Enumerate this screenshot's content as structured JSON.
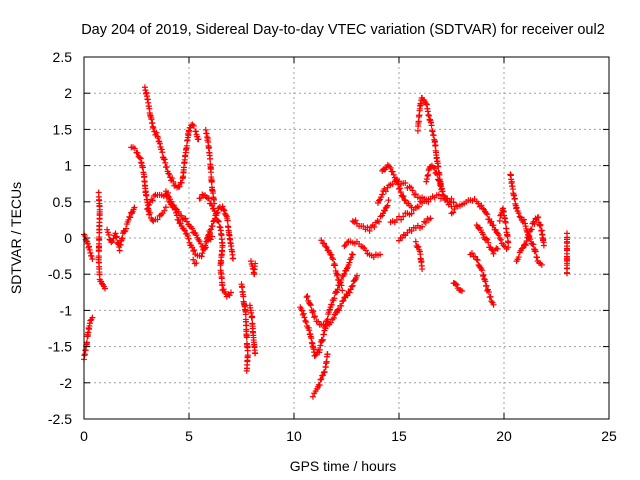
{
  "chart_data": {
    "type": "scatter",
    "title": "Day 204 of 2019, Sidereal Day-to-day VTEC variation (SDTVAR) for receiver oul2",
    "xlabel": "GPS time / hours",
    "ylabel": "SDTVAR / TECUs",
    "xlim": [
      0,
      25
    ],
    "ylim": [
      -2.5,
      2.5
    ],
    "x_ticks": [
      0,
      5,
      10,
      15,
      20,
      25
    ],
    "x_tick_labels": [
      "0",
      "5",
      "10",
      "15",
      "20",
      "25"
    ],
    "y_ticks": [
      -2.5,
      -2,
      -1.5,
      -1,
      -0.5,
      0,
      0.5,
      1,
      1.5,
      2,
      2.5
    ],
    "y_tick_labels": [
      "-2.5",
      "-2",
      "-1.5",
      "-1",
      "-0.5",
      "0",
      "0.5",
      "1",
      "1.5",
      "2",
      "2.5"
    ],
    "grid": true,
    "marker": "+",
    "color": "#ff0000",
    "series": [
      {
        "name": "SDTVAR",
        "traces": [
          [
            [
              0.0,
              0.05
            ],
            [
              0.15,
              -0.05
            ],
            [
              0.3,
              -0.2
            ],
            [
              0.4,
              -0.3
            ]
          ],
          [
            [
              0.0,
              -1.65
            ],
            [
              0.1,
              -1.5
            ],
            [
              0.2,
              -1.3
            ],
            [
              0.3,
              -1.15
            ],
            [
              0.4,
              -1.08
            ]
          ],
          [
            [
              0.7,
              0.6
            ],
            [
              0.75,
              0.4
            ],
            [
              0.7,
              -0.3
            ],
            [
              0.75,
              -0.55
            ],
            [
              0.85,
              -0.65
            ],
            [
              1.0,
              -0.72
            ]
          ],
          [
            [
              1.1,
              0.1
            ],
            [
              1.3,
              -0.05
            ],
            [
              1.5,
              0.05
            ],
            [
              1.7,
              -0.15
            ],
            [
              1.85,
              0.05
            ],
            [
              2.0,
              0.15
            ],
            [
              2.2,
              0.3
            ],
            [
              2.4,
              0.45
            ]
          ],
          [
            [
              2.25,
              1.25
            ],
            [
              2.5,
              1.2
            ],
            [
              2.7,
              1.1
            ],
            [
              2.85,
              0.9
            ],
            [
              2.95,
              0.6
            ],
            [
              3.1,
              0.35
            ],
            [
              3.3,
              0.25
            ],
            [
              3.6,
              0.3
            ],
            [
              3.9,
              0.4
            ]
          ],
          [
            [
              2.9,
              2.08
            ],
            [
              3.0,
              1.95
            ],
            [
              3.15,
              1.7
            ],
            [
              3.3,
              1.5
            ],
            [
              3.5,
              1.4
            ],
            [
              3.7,
              1.2
            ],
            [
              3.9,
              1.0
            ],
            [
              4.1,
              0.85
            ],
            [
              4.3,
              0.75
            ],
            [
              4.5,
              0.7
            ],
            [
              4.7,
              0.8
            ],
            [
              4.8,
              1.1
            ],
            [
              4.9,
              1.3
            ],
            [
              5.0,
              1.5
            ],
            [
              5.1,
              1.58
            ],
            [
              5.3,
              1.5
            ],
            [
              5.45,
              1.35
            ]
          ],
          [
            [
              3.0,
              0.4
            ],
            [
              3.2,
              0.5
            ],
            [
              3.4,
              0.58
            ],
            [
              3.6,
              0.62
            ],
            [
              3.8,
              0.6
            ],
            [
              4.0,
              0.55
            ],
            [
              4.2,
              0.45
            ],
            [
              4.5,
              0.35
            ],
            [
              4.7,
              0.28
            ],
            [
              4.9,
              0.22
            ],
            [
              5.1,
              0.15
            ],
            [
              5.3,
              0.05
            ],
            [
              5.5,
              -0.05
            ],
            [
              5.7,
              -0.12
            ],
            [
              5.9,
              -0.05
            ],
            [
              6.1,
              0.0
            ]
          ],
          [
            [
              3.9,
              0.65
            ],
            [
              4.1,
              0.55
            ],
            [
              4.3,
              0.4
            ],
            [
              4.5,
              0.25
            ],
            [
              4.7,
              0.15
            ],
            [
              4.9,
              0.05
            ],
            [
              5.1,
              -0.1
            ],
            [
              5.3,
              -0.2
            ],
            [
              5.6,
              -0.25
            ],
            [
              5.8,
              -0.1
            ],
            [
              6.0,
              0.1
            ],
            [
              6.2,
              0.25
            ],
            [
              6.4,
              0.4
            ],
            [
              6.6,
              0.45
            ],
            [
              6.8,
              0.3
            ],
            [
              6.9,
              0.1
            ],
            [
              7.0,
              -0.1
            ],
            [
              7.1,
              -0.3
            ]
          ],
          [
            [
              5.5,
              0.55
            ],
            [
              5.7,
              0.6
            ],
            [
              5.9,
              0.55
            ],
            [
              6.1,
              0.45
            ],
            [
              6.3,
              0.3
            ],
            [
              6.5,
              0.15
            ],
            [
              6.6,
              -0.1
            ],
            [
              6.5,
              -0.4
            ],
            [
              6.6,
              -0.7
            ],
            [
              6.8,
              -0.8
            ],
            [
              7.0,
              -0.75
            ]
          ],
          [
            [
              5.8,
              1.5
            ],
            [
              5.9,
              1.35
            ],
            [
              6.0,
              1.1
            ],
            [
              6.05,
              0.9
            ],
            [
              6.1,
              0.7
            ],
            [
              6.2,
              0.5
            ]
          ],
          [
            [
              5.2,
              -0.3
            ],
            [
              5.35,
              -0.35
            ]
          ],
          [
            [
              7.5,
              -0.65
            ],
            [
              7.6,
              -0.85
            ],
            [
              7.7,
              -1.05
            ],
            [
              7.75,
              -1.4
            ],
            [
              7.8,
              -1.6
            ],
            [
              7.75,
              -1.85
            ]
          ],
          [
            [
              7.9,
              -0.95
            ],
            [
              8.0,
              -1.1
            ],
            [
              8.05,
              -1.3
            ],
            [
              8.1,
              -1.45
            ],
            [
              8.15,
              -1.6
            ]
          ],
          [
            [
              7.95,
              -0.3
            ],
            [
              8.05,
              -0.4
            ],
            [
              8.1,
              -0.5
            ],
            [
              8.15,
              -0.38
            ]
          ],
          [
            [
              10.3,
              -0.95
            ],
            [
              10.5,
              -1.1
            ],
            [
              10.7,
              -1.25
            ],
            [
              10.9,
              -1.5
            ],
            [
              11.0,
              -1.65
            ],
            [
              11.2,
              -1.55
            ],
            [
              11.4,
              -1.35
            ],
            [
              11.6,
              -1.1
            ],
            [
              11.8,
              -0.9
            ],
            [
              12.0,
              -0.75
            ],
            [
              12.2,
              -0.6
            ],
            [
              12.4,
              -0.5
            ],
            [
              12.6,
              -0.35
            ],
            [
              12.8,
              -0.2
            ]
          ],
          [
            [
              10.6,
              -0.8
            ],
            [
              10.8,
              -0.95
            ],
            [
              11.0,
              -1.1
            ],
            [
              11.3,
              -1.2
            ],
            [
              11.6,
              -1.2
            ],
            [
              11.9,
              -1.1
            ],
            [
              12.2,
              -0.95
            ],
            [
              12.5,
              -0.8
            ],
            [
              12.8,
              -0.65
            ],
            [
              13.0,
              -0.5
            ]
          ],
          [
            [
              10.9,
              -2.18
            ],
            [
              11.1,
              -2.1
            ],
            [
              11.3,
              -1.95
            ],
            [
              11.5,
              -1.8
            ],
            [
              11.6,
              -1.6
            ]
          ],
          [
            [
              11.3,
              -0.05
            ],
            [
              11.5,
              -0.1
            ],
            [
              11.7,
              -0.2
            ],
            [
              11.9,
              -0.35
            ],
            [
              12.1,
              -0.55
            ],
            [
              12.3,
              -0.7
            ]
          ],
          [
            [
              12.4,
              -0.1
            ],
            [
              12.6,
              -0.05
            ],
            [
              12.9,
              -0.05
            ],
            [
              13.2,
              -0.1
            ],
            [
              13.5,
              -0.2
            ],
            [
              13.8,
              -0.25
            ],
            [
              14.1,
              -0.2
            ]
          ],
          [
            [
              12.8,
              0.25
            ],
            [
              13.0,
              0.2
            ],
            [
              13.3,
              0.15
            ],
            [
              13.6,
              0.1
            ],
            [
              13.9,
              0.2
            ],
            [
              14.2,
              0.3
            ],
            [
              14.5,
              0.5
            ]
          ],
          [
            [
              14.0,
              0.5
            ],
            [
              14.3,
              0.65
            ],
            [
              14.6,
              0.75
            ],
            [
              14.9,
              0.8
            ],
            [
              15.2,
              0.75
            ],
            [
              15.5,
              0.7
            ],
            [
              15.8,
              0.6
            ],
            [
              16.1,
              0.55
            ],
            [
              16.4,
              0.5
            ]
          ],
          [
            [
              14.2,
              0.9
            ],
            [
              14.4,
              1.0
            ],
            [
              14.6,
              0.95
            ],
            [
              14.8,
              0.85
            ],
            [
              15.0,
              0.7
            ],
            [
              15.3,
              0.5
            ],
            [
              15.6,
              0.4
            ]
          ],
          [
            [
              14.6,
              0.2
            ],
            [
              14.9,
              0.25
            ],
            [
              15.2,
              0.3
            ],
            [
              15.5,
              0.35
            ],
            [
              15.8,
              0.4
            ],
            [
              16.1,
              0.5
            ],
            [
              16.4,
              0.55
            ],
            [
              16.8,
              0.6
            ],
            [
              17.2,
              0.55
            ],
            [
              17.6,
              0.5
            ]
          ],
          [
            [
              15.0,
              -0.05
            ],
            [
              15.3,
              0.05
            ],
            [
              15.6,
              0.1
            ],
            [
              15.9,
              0.15
            ],
            [
              16.2,
              0.2
            ],
            [
              16.5,
              0.3
            ]
          ],
          [
            [
              15.9,
              1.5
            ],
            [
              16.0,
              1.8
            ],
            [
              16.1,
              1.95
            ],
            [
              16.3,
              1.85
            ],
            [
              16.5,
              1.6
            ],
            [
              16.7,
              1.35
            ],
            [
              16.8,
              1.1
            ],
            [
              16.9,
              0.9
            ],
            [
              17.0,
              0.7
            ]
          ],
          [
            [
              16.3,
              0.8
            ],
            [
              16.5,
              1.0
            ],
            [
              16.7,
              0.95
            ],
            [
              16.9,
              0.8
            ],
            [
              17.1,
              0.6
            ],
            [
              17.3,
              0.5
            ],
            [
              17.5,
              0.45
            ]
          ],
          [
            [
              15.8,
              -0.05
            ],
            [
              16.0,
              -0.2
            ],
            [
              16.1,
              -0.4
            ]
          ],
          [
            [
              17.5,
              0.35
            ],
            [
              17.8,
              0.45
            ],
            [
              18.1,
              0.5
            ],
            [
              18.4,
              0.55
            ],
            [
              18.7,
              0.5
            ],
            [
              19.0,
              0.4
            ],
            [
              19.3,
              0.25
            ],
            [
              19.6,
              0.1
            ],
            [
              19.9,
              -0.05
            ],
            [
              20.2,
              -0.15
            ]
          ],
          [
            [
              18.7,
              0.2
            ],
            [
              18.9,
              0.1
            ],
            [
              19.1,
              0.0
            ],
            [
              19.3,
              -0.1
            ],
            [
              19.5,
              -0.2
            ],
            [
              19.7,
              -0.15
            ]
          ],
          [
            [
              17.6,
              -0.6
            ],
            [
              17.8,
              -0.7
            ],
            [
              18.0,
              -0.75
            ]
          ],
          [
            [
              18.4,
              -0.2
            ],
            [
              18.7,
              -0.3
            ],
            [
              19.0,
              -0.5
            ],
            [
              19.2,
              -0.7
            ],
            [
              19.4,
              -0.85
            ],
            [
              19.5,
              -0.9
            ]
          ],
          [
            [
              19.8,
              0.25
            ],
            [
              19.95,
              0.4
            ],
            [
              20.1,
              0.15
            ],
            [
              20.2,
              -0.05
            ]
          ],
          [
            [
              20.3,
              0.9
            ],
            [
              20.4,
              0.7
            ],
            [
              20.5,
              0.55
            ],
            [
              20.6,
              0.4
            ],
            [
              20.8,
              0.3
            ],
            [
              21.0,
              0.2
            ],
            [
              21.2,
              0.0
            ],
            [
              21.4,
              -0.1
            ],
            [
              21.6,
              -0.3
            ],
            [
              21.8,
              -0.35
            ]
          ],
          [
            [
              20.6,
              -0.3
            ],
            [
              20.8,
              -0.2
            ],
            [
              21.0,
              -0.1
            ],
            [
              21.2,
              0.05
            ],
            [
              21.4,
              0.2
            ],
            [
              21.6,
              0.3
            ],
            [
              21.8,
              0.1
            ],
            [
              21.9,
              -0.1
            ]
          ],
          [
            [
              23.0,
              0.05
            ],
            [
              23.0,
              -0.1
            ],
            [
              23.0,
              -0.3
            ],
            [
              23.0,
              -0.5
            ]
          ]
        ]
      }
    ]
  }
}
